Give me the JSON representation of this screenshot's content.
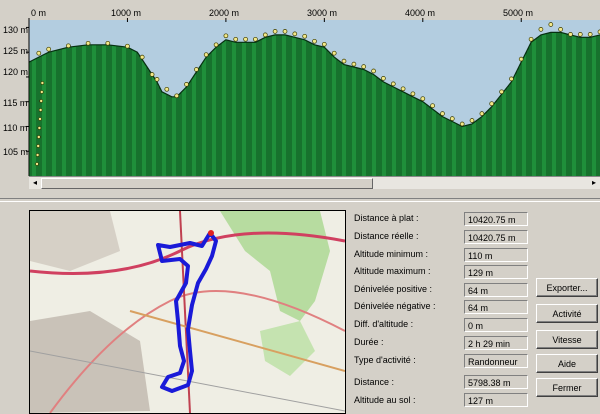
{
  "chart_data": {
    "type": "area",
    "x_tick_labels": [
      "0 m",
      "1000 m",
      "2000 m",
      "3000 m",
      "4000 m",
      "5000 m"
    ],
    "x_ticks": [
      0,
      1000,
      2000,
      3000,
      4000,
      5000
    ],
    "y_tick_labels": [
      "130 m",
      "125 m",
      "120 m",
      "115 m",
      "110 m",
      "105 m"
    ],
    "y_ticks": [
      130,
      125,
      120,
      115,
      110,
      105
    ],
    "xlim": [
      0,
      5800
    ],
    "ylim": [
      100,
      131.5
    ],
    "x": [
      0,
      100,
      200,
      400,
      600,
      800,
      1000,
      1100,
      1200,
      1300,
      1350,
      1450,
      1500,
      1600,
      1700,
      1800,
      1900,
      2000,
      2100,
      2200,
      2300,
      2400,
      2500,
      2600,
      2700,
      2800,
      2900,
      3000,
      3100,
      3200,
      3300,
      3400,
      3500,
      3600,
      3700,
      3800,
      3900,
      4000,
      4100,
      4200,
      4300,
      4400,
      4500,
      4600,
      4700,
      4800,
      4900,
      5000,
      5050,
      5100,
      5200,
      5300,
      5400,
      5500,
      5600,
      5700,
      5800
    ],
    "y": [
      123,
      124,
      125,
      126,
      126.5,
      126.5,
      126,
      125,
      122,
      119,
      117,
      116,
      116,
      118,
      121,
      124,
      126,
      127.5,
      127,
      127,
      127,
      128,
      128.5,
      128.5,
      128,
      127.5,
      126.5,
      126,
      124,
      122.5,
      122,
      121.5,
      120.5,
      119,
      118,
      117,
      116,
      115,
      113.5,
      112,
      111,
      110,
      110.5,
      112,
      114,
      116.5,
      119,
      123,
      125,
      127,
      128.5,
      129,
      129,
      128.5,
      128,
      128,
      128.5
    ],
    "markers": [
      [
        100,
        124.8
      ],
      [
        200,
        125.6
      ],
      [
        400,
        126.3
      ],
      [
        600,
        126.8
      ],
      [
        800,
        126.8
      ],
      [
        1000,
        126.2
      ],
      [
        1150,
        124
      ],
      [
        1250,
        120.5
      ],
      [
        1300,
        119.5
      ],
      [
        1400,
        117.5
      ],
      [
        1500,
        116.2
      ],
      [
        1600,
        118.5
      ],
      [
        1700,
        121.5
      ],
      [
        1800,
        124.5
      ],
      [
        1900,
        126.5
      ],
      [
        2000,
        128.3
      ],
      [
        2100,
        127.6
      ],
      [
        2200,
        127.6
      ],
      [
        2300,
        127.6
      ],
      [
        2400,
        128.5
      ],
      [
        2500,
        129.2
      ],
      [
        2600,
        129.2
      ],
      [
        2700,
        128.7
      ],
      [
        2800,
        128.2
      ],
      [
        2900,
        127.2
      ],
      [
        3000,
        126.6
      ],
      [
        3100,
        124.8
      ],
      [
        3200,
        123.2
      ],
      [
        3300,
        122.6
      ],
      [
        3400,
        122.1
      ],
      [
        3500,
        121.2
      ],
      [
        3600,
        119.7
      ],
      [
        3700,
        118.6
      ],
      [
        3800,
        117.6
      ],
      [
        3900,
        116.6
      ],
      [
        4000,
        115.6
      ],
      [
        4100,
        114.2
      ],
      [
        4200,
        112.6
      ],
      [
        4300,
        111.6
      ],
      [
        4400,
        110.5
      ],
      [
        4500,
        111.2
      ],
      [
        4600,
        112.6
      ],
      [
        4700,
        114.6
      ],
      [
        4800,
        117
      ],
      [
        4900,
        119.6
      ],
      [
        5000,
        123.6
      ],
      [
        5100,
        127.6
      ],
      [
        5200,
        129.6
      ],
      [
        5300,
        130.6
      ],
      [
        5400,
        129.6
      ],
      [
        5500,
        128.6
      ],
      [
        5600,
        128.6
      ],
      [
        5700,
        128.6
      ],
      [
        5800,
        129.1
      ]
    ],
    "colors": {
      "fill": "#1f8f3a",
      "line": "#063010",
      "sky": "#b3cde0",
      "marker": "#f4e98a",
      "marker_edge": "#3a3a00"
    }
  },
  "stats": [
    {
      "label": "Distance à plat :",
      "value": "10420.75 m"
    },
    {
      "label": "Distance réelle :",
      "value": "10420.75 m"
    },
    {
      "label": "Altitude minimum :",
      "value": "110 m"
    },
    {
      "label": "Altitude maximum :",
      "value": "129 m"
    },
    {
      "label": "Dénivelée positive :",
      "value": "64 m"
    },
    {
      "label": "Dénivelée négative :",
      "value": "64 m"
    },
    {
      "label": "Diff. d'altitude :",
      "value": "0 m"
    },
    {
      "label": "Durée :",
      "value": "2 h 29 min"
    },
    {
      "label": "Type d'activité :",
      "value": "Randonneur"
    }
  ],
  "cursor_stats": [
    {
      "label": "Distance :",
      "value": "5798.38 m"
    },
    {
      "label": "Altitude au sol :",
      "value": "127 m"
    }
  ],
  "buttons": {
    "export": "Exporter...",
    "activity": "Activité",
    "speed": "Vitesse",
    "help": "Aide",
    "close": "Fermer"
  },
  "scroll": {
    "left_arrow": "◂",
    "right_arrow": "▸"
  }
}
